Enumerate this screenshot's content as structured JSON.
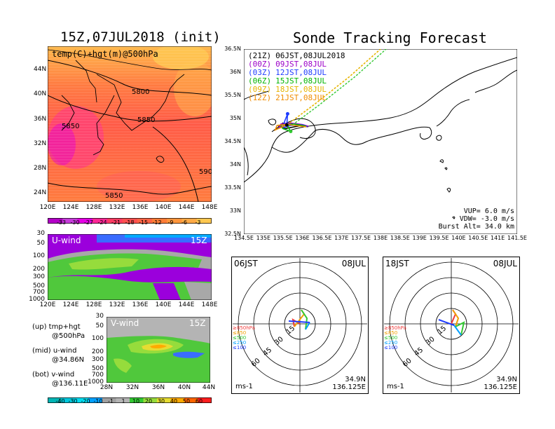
{
  "left_panel": {
    "title": "15Z,07JUL2018 (init)",
    "map_label": "temp(C)+hgt(m)@500hPa",
    "lat_ticks": [
      "44N",
      "40N",
      "36N",
      "32N",
      "28N",
      "24N"
    ],
    "lon_ticks": [
      "120E",
      "124E",
      "128E",
      "132E",
      "136E",
      "140E",
      "144E",
      "148E"
    ],
    "contour_labels": [
      "5800",
      "5850",
      "5850",
      "5850",
      "590"
    ],
    "temp_colorbar": [
      "-33",
      "-30",
      "-27",
      "-24",
      "-21",
      "-18",
      "-15",
      "-12",
      "-9",
      "-6",
      "-3"
    ],
    "uwind_label": "U-wind",
    "uwind_time": "15Z",
    "uwind_pressure_ticks": [
      "30",
      "50",
      "100",
      "200",
      "300",
      "500",
      "700",
      "1000"
    ],
    "vwind_label": "V-wind",
    "vwind_time": "15Z",
    "vwind_pressure_ticks": [
      "30",
      "50",
      "100",
      "200",
      "300",
      "500",
      "700",
      "1000"
    ],
    "vwind_lat_ticks": [
      "28N",
      "32N",
      "36N",
      "40N",
      "44N"
    ],
    "wind_colorbar": [
      "-40",
      "-30",
      "-20",
      "-10",
      "-1",
      "1",
      "10",
      "20",
      "30",
      "40",
      "50",
      "60"
    ],
    "legend": {
      "up1": "(up) tmp+hgt",
      "up2": "@500hPa",
      "mid1": "(mid) u-wind",
      "mid2": "@34.86N",
      "bot1": "(bot) v-wind",
      "bot2": "@136.11E"
    }
  },
  "right_panel": {
    "title": "Sonde Tracking Forecast",
    "lat_ticks": [
      "36.5N",
      "36N",
      "35.5N",
      "35N",
      "34.5N",
      "34N",
      "33.5N",
      "33N",
      "32.5N"
    ],
    "lon_ticks": [
      "134.5E",
      "135E",
      "135.5E",
      "136E",
      "136.5E",
      "137E",
      "137.5E",
      "138E",
      "138.5E",
      "139E",
      "139.5E",
      "140E",
      "140.5E",
      "141E",
      "141.5E"
    ],
    "runs": [
      {
        "code": "(21Z)",
        "time": "06JST,08JUL2018",
        "color": "#000000"
      },
      {
        "code": "(00Z)",
        "time": "09JST,08JUL",
        "color": "#9b00c8"
      },
      {
        "code": "(03Z)",
        "time": "12JST,08JUL",
        "color": "#1e3cff"
      },
      {
        "code": "(06Z)",
        "time": "15JST,08JUL",
        "color": "#00b400"
      },
      {
        "code": "(09Z)",
        "time": "18JST,08JUL",
        "color": "#e6b400"
      },
      {
        "code": "(12Z)",
        "time": "21JST,08JUL",
        "color": "#f08c00"
      }
    ],
    "params": {
      "vup": "VUP=  6.0 m/s",
      "vdw": "VDW= -3.0 m/s",
      "burst": "Burst Alt= 34.0 km"
    }
  },
  "hodographs": [
    {
      "time": "06JST",
      "date": "08JUL",
      "ring_labels": [
        "15",
        "30",
        "45",
        "60"
      ],
      "unit": "ms-1",
      "lat": "34.9N",
      "lon": "136.125E",
      "pressure_legend": [
        "≥850hPa",
        "≤850",
        "≤500",
        "≤250",
        "≤100"
      ]
    },
    {
      "time": "18JST",
      "date": "08JUL",
      "ring_labels": [
        "15",
        "30",
        "45",
        "60"
      ],
      "unit": "ms-1",
      "lat": "34.9N",
      "lon": "136.125E",
      "pressure_legend": [
        "≥850hPa",
        "≤850",
        "≤500",
        "≤250",
        "≤100"
      ]
    }
  ],
  "colors": {
    "temp_scale": [
      "#b400c8",
      "#c83cdc",
      "#e600e6",
      "#ff2896",
      "#ff3c64",
      "#ff5050",
      "#ff6446",
      "#ff7d37",
      "#ff963c",
      "#ffaa46",
      "#ffc850"
    ],
    "wind_scale": [
      "#00b4b4",
      "#00c8dc",
      "#00dcf0",
      "#00a0ff",
      "#a0a0a0",
      "#b4b4b4",
      "#32c832",
      "#96dc3c",
      "#e6dc32",
      "#ffaa00",
      "#ff6400",
      "#ff1e1e"
    ],
    "pressure_legend": [
      "#f03c3c",
      "#f0a000",
      "#32c832",
      "#00a0ff",
      "#1e3cff"
    ],
    "hodo_colors": [
      "#f03c3c",
      "#f0a000",
      "#32c832",
      "#00a0ff",
      "#1e3cff"
    ]
  },
  "chart_data": [
    {
      "type": "heatmap",
      "title": "15Z,07JUL2018 (init)",
      "xlabel": "",
      "ylabel": "",
      "x": [
        "120E",
        "124E",
        "128E",
        "132E",
        "136E",
        "140E",
        "144E",
        "148E"
      ],
      "y": [
        "24N",
        "28N",
        "32N",
        "36N",
        "40N",
        "44N"
      ],
      "xlim": [
        120,
        149
      ],
      "ylim": [
        22,
        47
      ],
      "colorbar": [
        -33,
        -30,
        -27,
        -24,
        -21,
        -18,
        -15,
        -12,
        -9,
        -6,
        -3
      ],
      "contours": [
        5800,
        5850,
        5850,
        5850,
        590
      ]
    },
    {
      "type": "line",
      "title": "Sonde Tracking Forecast",
      "xlabel": "",
      "ylabel": "",
      "xlim": [
        134.5,
        141.5
      ],
      "ylim": [
        32.5,
        36.5
      ],
      "series": [
        {
          "name": "(21Z)",
          "x": [
            135.6,
            135.5,
            135.4,
            135.55,
            135.8,
            136.0,
            136.15
          ],
          "y": [
            34.86,
            34.9,
            34.83,
            34.78,
            34.82,
            34.85,
            34.82
          ]
        },
        {
          "name": "(00Z)",
          "x": [
            135.6,
            135.4,
            135.45,
            135.7,
            136.0,
            136.15
          ],
          "y": [
            34.86,
            34.8,
            34.88,
            34.9,
            34.87,
            34.83
          ]
        },
        {
          "name": "(03Z)",
          "x": [
            135.6,
            135.62,
            135.55,
            135.5,
            135.7,
            136.0,
            136.12
          ],
          "y": [
            34.86,
            35.1,
            34.95,
            34.8,
            34.85,
            34.86,
            34.82
          ]
        },
        {
          "name": "(06Z)",
          "x": [
            135.6,
            135.7,
            135.5,
            135.45,
            135.8,
            136.1
          ],
          "y": [
            34.86,
            34.72,
            34.78,
            34.86,
            34.88,
            34.83
          ]
        },
        {
          "name": "(09Z)",
          "x": [
            135.6,
            136.3,
            137.2,
            138.0
          ],
          "y": [
            34.86,
            35.3,
            35.9,
            36.5
          ]
        },
        {
          "name": "(12Z)",
          "x": [
            135.6,
            135.3,
            135.35,
            135.6,
            135.9,
            136.1
          ],
          "y": [
            34.86,
            34.75,
            34.85,
            34.87,
            34.84,
            34.82
          ]
        }
      ]
    },
    {
      "type": "heatmap",
      "title": "U-wind 15Z",
      "x": [
        "120E",
        "124E",
        "128E",
        "132E",
        "136E",
        "140E",
        "144E",
        "148E"
      ],
      "y": [
        "30",
        "50",
        "100",
        "200",
        "300",
        "500",
        "700",
        "1000"
      ],
      "ylabel": "",
      "xlabel": ""
    },
    {
      "type": "heatmap",
      "title": "V-wind 15Z",
      "x": [
        "28N",
        "32N",
        "36N",
        "40N",
        "44N"
      ],
      "y": [
        "30",
        "50",
        "100",
        "200",
        "300",
        "500",
        "700",
        "1000"
      ],
      "colorbar": [
        -40,
        -30,
        -20,
        -10,
        -1,
        1,
        10,
        20,
        30,
        40,
        50,
        60
      ]
    }
  ]
}
